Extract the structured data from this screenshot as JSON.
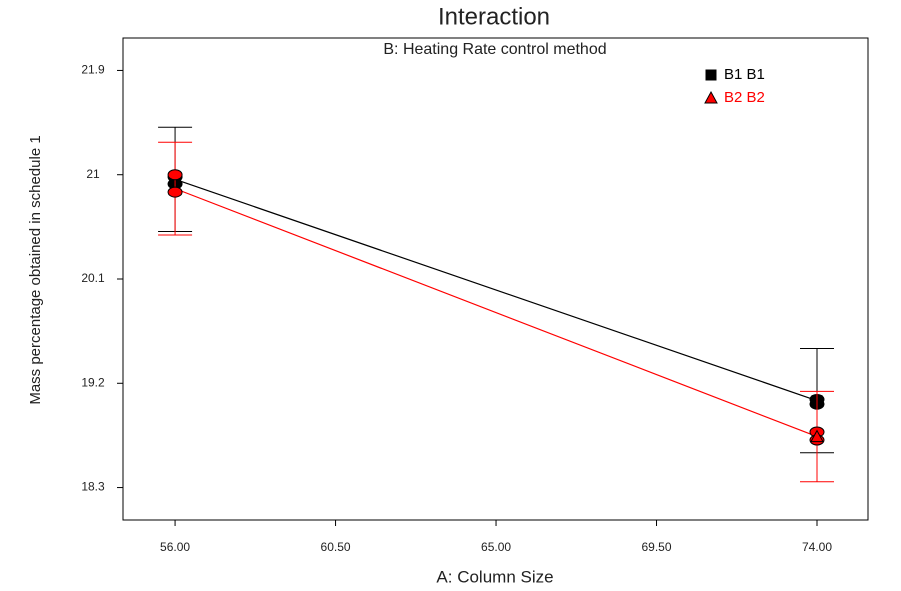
{
  "chart_data": {
    "type": "line",
    "title": "Interaction",
    "subtitle": "B: Heating Rate control method",
    "x_label": "A: Column Size",
    "y_label": "Mass percentage obtained in schedule 1",
    "x": [
      56,
      74
    ],
    "series": [
      {
        "name": "B1 B1",
        "color": "#000000",
        "marker": "square",
        "values": [
          20.96,
          19.05
        ],
        "errors": [
          0.45,
          0.45
        ],
        "points_x": [
          56,
          56,
          74,
          74
        ],
        "points_y": [
          20.98,
          20.92,
          19.06,
          19.02
        ]
      },
      {
        "name": "B2 B2",
        "color": "#ff0000",
        "marker": "triangle",
        "values": [
          20.88,
          18.74
        ],
        "errors": [
          0.4,
          0.39
        ],
        "points_x": [
          56,
          56,
          74,
          74
        ],
        "points_y": [
          21.0,
          20.85,
          18.78,
          18.71
        ]
      }
    ],
    "xlim": [
      54.54,
      75.43
    ],
    "ylim": [
      18.02,
      22.18
    ],
    "xticks": [
      {
        "value": 56,
        "label": "56.00"
      },
      {
        "value": 60.5,
        "label": "60.50"
      },
      {
        "value": 65,
        "label": "65.00"
      },
      {
        "value": 69.5,
        "label": "69.50"
      },
      {
        "value": 74,
        "label": "74.00"
      }
    ],
    "yticks": [
      21.9,
      21,
      20.1,
      19.2,
      18.3
    ],
    "legend": "top-right"
  }
}
